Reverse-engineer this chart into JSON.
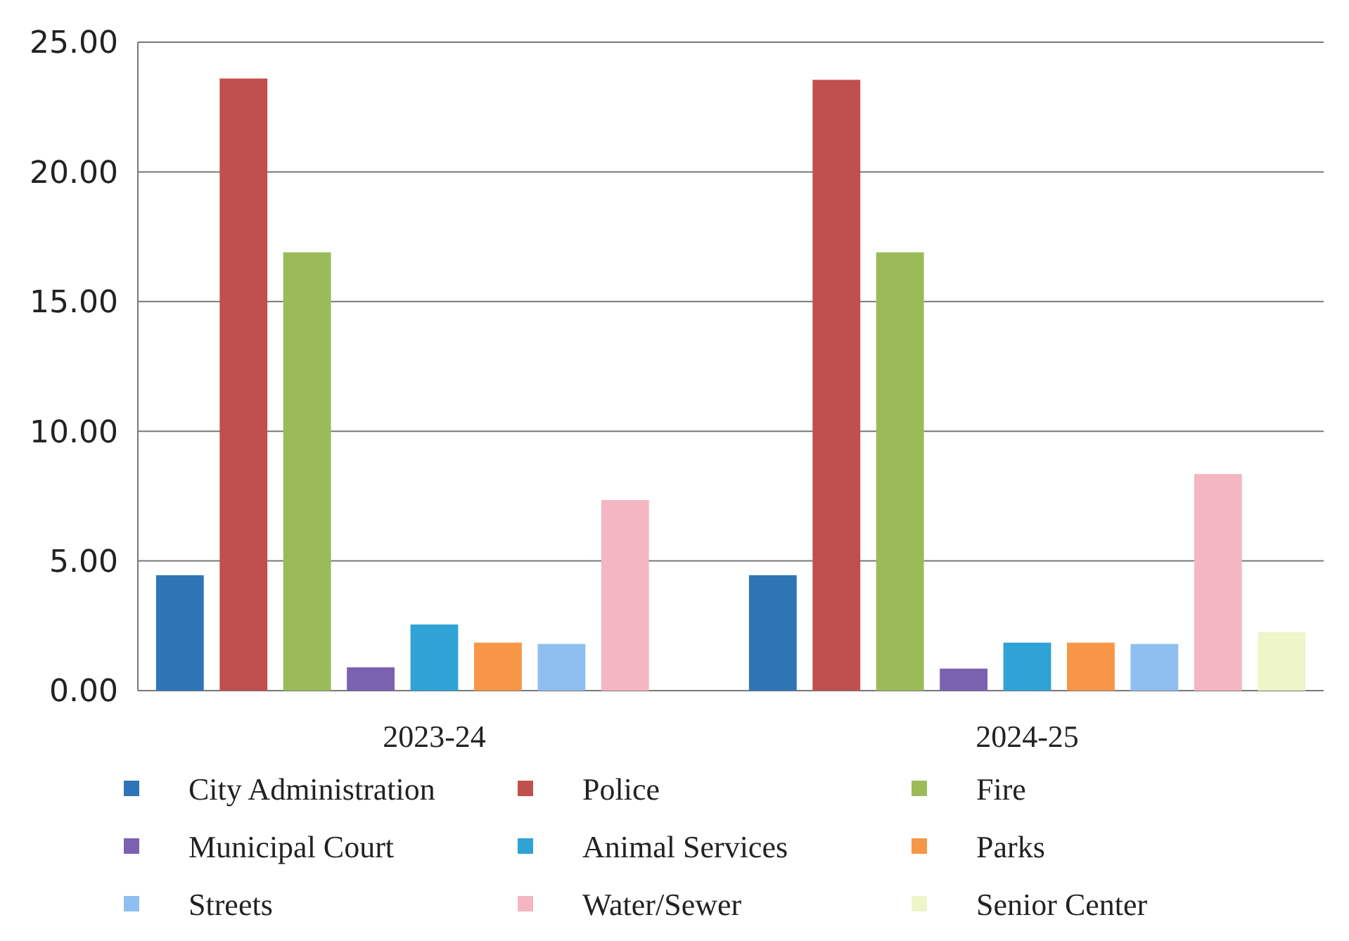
{
  "chart_data": {
    "type": "bar",
    "categories": [
      "2023-24",
      "2024-25"
    ],
    "series": [
      {
        "name": "City Administration",
        "color": "#2e75b6",
        "values": [
          4.45,
          4.45
        ]
      },
      {
        "name": "Police",
        "color": "#c0504d",
        "values": [
          23.6,
          23.55
        ]
      },
      {
        "name": "Fire",
        "color": "#9bbb59",
        "values": [
          16.9,
          16.9
        ]
      },
      {
        "name": "Municipal Court",
        "color": "#7a62b0",
        "values": [
          0.9,
          0.85
        ]
      },
      {
        "name": "Animal Services",
        "color": "#2fa3d6",
        "values": [
          2.55,
          1.85
        ]
      },
      {
        "name": "Parks",
        "color": "#f79646",
        "values": [
          1.85,
          1.85
        ]
      },
      {
        "name": "Streets",
        "color": "#8fbff0",
        "values": [
          1.8,
          1.8
        ]
      },
      {
        "name": "Water/Sewer",
        "color": "#f4b6c2",
        "values": [
          7.35,
          8.35
        ]
      },
      {
        "name": "Senior Center",
        "color": "#eef5c8",
        "values": [
          null,
          2.25
        ]
      }
    ],
    "ylim": [
      0,
      25
    ],
    "yticks": [
      {
        "value": 0,
        "label": "0.00"
      },
      {
        "value": 5,
        "label": "5.00"
      },
      {
        "value": 10,
        "label": "10.00"
      },
      {
        "value": 15,
        "label": "15.00"
      },
      {
        "value": 20,
        "label": "20.00"
      },
      {
        "value": 25,
        "label": "25.00"
      }
    ],
    "grid": "y",
    "legend": "bottom"
  }
}
